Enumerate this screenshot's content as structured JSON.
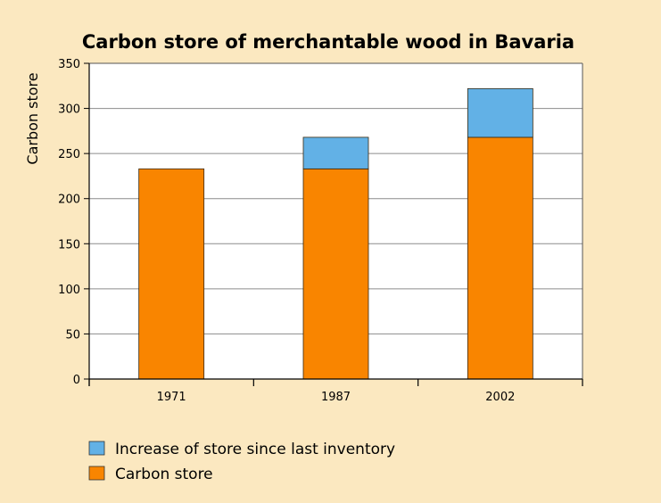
{
  "chart_data": {
    "type": "bar",
    "stacked": true,
    "title": "Carbon store of merchantable wood in Bavaria",
    "xlabel": "",
    "ylabel": "Carbon store",
    "categories": [
      "1971",
      "1987",
      "2002"
    ],
    "ylim": [
      0,
      350
    ],
    "yticks": [
      0,
      50,
      100,
      150,
      200,
      250,
      300,
      350
    ],
    "grid": true,
    "legend_position": "bottom-left",
    "series": [
      {
        "name": "Carbon store",
        "values": [
          233,
          233,
          268
        ],
        "color": "#f98500"
      },
      {
        "name": "Increase of store since last inventory",
        "values": [
          0,
          35,
          54
        ],
        "color": "#62b1e6"
      }
    ],
    "legend_order": [
      "Increase of store since last inventory",
      "Carbon store"
    ],
    "colors": {
      "background": "#fbe8c0",
      "plot_background": "#ffffff",
      "grid": "#8c8c8c"
    }
  }
}
